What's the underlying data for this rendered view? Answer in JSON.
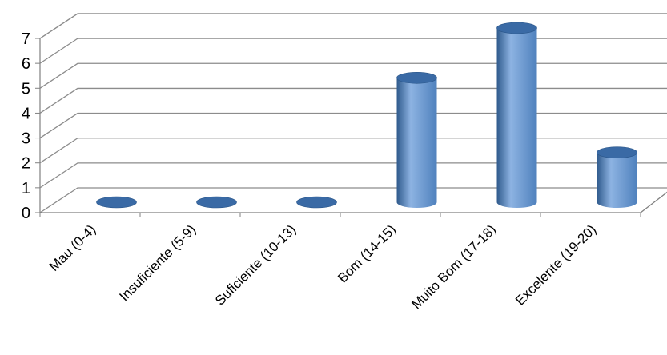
{
  "chart_data": {
    "type": "bar",
    "style": "3d-cylinder",
    "title": "",
    "xlabel": "",
    "ylabel": "",
    "categories": [
      "Mau (0-4)",
      "Insuficiente (5-9)",
      "Suficiente (10-13)",
      "Bom (14-15)",
      "Muito Bom (17-18)",
      "Excelente (19-20)"
    ],
    "values": [
      0,
      0,
      0,
      5,
      7,
      2
    ],
    "ylim": [
      0,
      7
    ],
    "yticks": [
      "0",
      "1",
      "2",
      "3",
      "4",
      "5",
      "6",
      "7"
    ],
    "grid": true,
    "legend": "none",
    "colors": {
      "bar_front": "#4f81bd",
      "bar_dark": "#2f5a8c",
      "bar_light": "#8db3e2",
      "bar_top": "#3a6aa5",
      "grid": "#8c8c8c",
      "axis": "#808080"
    }
  }
}
